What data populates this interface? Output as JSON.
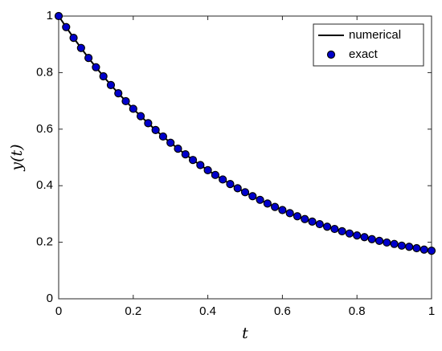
{
  "chart_data": {
    "type": "line",
    "x_label": "t",
    "y_label": "y(t)",
    "x": [
      0,
      0.02,
      0.04,
      0.06,
      0.08,
      0.1,
      0.12,
      0.14,
      0.16,
      0.18,
      0.2,
      0.22,
      0.24,
      0.26,
      0.28,
      0.3,
      0.32,
      0.34,
      0.36,
      0.38,
      0.4,
      0.42,
      0.44,
      0.46,
      0.48,
      0.5,
      0.52,
      0.54,
      0.56,
      0.58,
      0.6,
      0.62,
      0.64,
      0.66,
      0.68,
      0.7,
      0.72,
      0.74,
      0.76,
      0.78,
      0.8,
      0.82,
      0.84,
      0.86,
      0.88,
      0.9,
      0.92,
      0.94,
      0.96,
      0.98,
      1
    ],
    "series": [
      {
        "name": "numerical",
        "color": "#000000",
        "mode": "line",
        "values": [
          1.0,
          0.961,
          0.923,
          0.887,
          0.852,
          0.819,
          0.787,
          0.756,
          0.727,
          0.699,
          0.672,
          0.646,
          0.621,
          0.597,
          0.574,
          0.552,
          0.531,
          0.511,
          0.491,
          0.473,
          0.455,
          0.438,
          0.422,
          0.406,
          0.391,
          0.377,
          0.363,
          0.35,
          0.337,
          0.325,
          0.314,
          0.303,
          0.292,
          0.282,
          0.273,
          0.264,
          0.255,
          0.247,
          0.239,
          0.231,
          0.224,
          0.218,
          0.211,
          0.205,
          0.199,
          0.194,
          0.188,
          0.184,
          0.179,
          0.174,
          0.17
        ]
      },
      {
        "name": "exact",
        "color": "#0000cc",
        "mode": "markers",
        "values": [
          1.0,
          0.961,
          0.923,
          0.887,
          0.852,
          0.819,
          0.787,
          0.756,
          0.727,
          0.699,
          0.672,
          0.646,
          0.621,
          0.597,
          0.574,
          0.552,
          0.531,
          0.511,
          0.491,
          0.473,
          0.455,
          0.438,
          0.422,
          0.406,
          0.391,
          0.377,
          0.363,
          0.35,
          0.337,
          0.325,
          0.314,
          0.303,
          0.292,
          0.282,
          0.273,
          0.264,
          0.255,
          0.247,
          0.239,
          0.231,
          0.224,
          0.218,
          0.211,
          0.205,
          0.199,
          0.194,
          0.188,
          0.184,
          0.179,
          0.174,
          0.17
        ]
      }
    ],
    "xlim": [
      0,
      1
    ],
    "ylim": [
      0,
      1
    ],
    "xticks": [
      0,
      0.2,
      0.4,
      0.6,
      0.8,
      1
    ],
    "yticks": [
      0,
      0.2,
      0.4,
      0.6,
      0.8,
      1
    ],
    "legend": "upper right",
    "grid": false
  }
}
